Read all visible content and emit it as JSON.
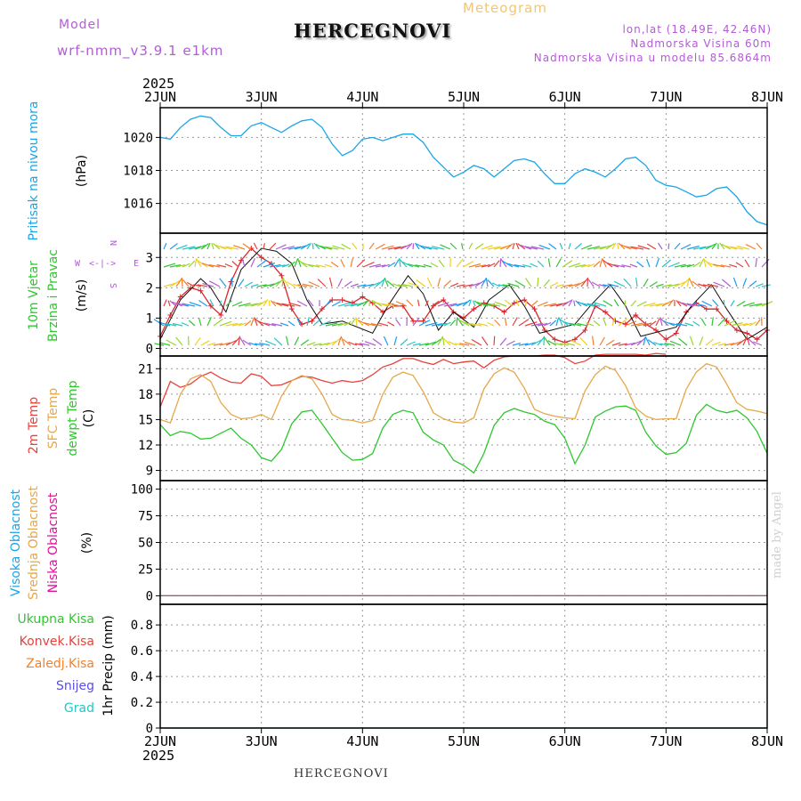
{
  "header": {
    "model_label": "Model",
    "model_name": "wrf-nmm_v3.9.1 e1km",
    "title": "HERCEGNOVI",
    "meteogram_label": "Meteogram",
    "lonlat": "lon,lat (18.49E, 42.46N)",
    "elevation": "Nadmorska Visina 60m",
    "model_elevation": "Nadmorska Visina u modelu 85.6864m"
  },
  "footer": {
    "station": "HERCEGNOVI",
    "credit": "made by Angel"
  },
  "colors": {
    "pressure": "#1aa5e8",
    "temp2m": "#e8413c",
    "sfc_temp": "#e5a84a",
    "dewpoint": "#2ec82e",
    "wind_label": "#2ec82e",
    "compass": "#b25cd6",
    "visoka": "#1aa5e8",
    "srednja": "#e5a84a",
    "niska": "#e0139a",
    "ukupna": "#2ec82e",
    "konvek": "#e8413c",
    "zaledj": "#f5802a",
    "snijeg": "#5b4ee8",
    "grad": "#22c7c7"
  },
  "time_axis": {
    "year": "2025",
    "ticks": [
      "2JUN",
      "3JUN",
      "4JUN",
      "5JUN",
      "6JUN",
      "7JUN",
      "8JUN"
    ]
  },
  "chart_data": [
    {
      "panel": "pressure",
      "type": "line",
      "ylabel_title": "Pritisak na nivou mora",
      "ylabel_unit": "(hPa)",
      "yticks": [
        "1016",
        "1018",
        "1020"
      ],
      "ylim": [
        1014.2,
        1021.8
      ],
      "grid": true,
      "series": [
        {
          "color": "#1aa5e8",
          "x": [
            0,
            0.1,
            0.2,
            0.3,
            0.4,
            0.5,
            0.6,
            0.7,
            0.8,
            0.9,
            1.0,
            1.1,
            1.2,
            1.3,
            1.4,
            1.5,
            1.6,
            1.7,
            1.8,
            1.9,
            2.0,
            2.1,
            2.2,
            2.3,
            2.4,
            2.5,
            2.6,
            2.7,
            2.8,
            2.9,
            3.0,
            3.1,
            3.2,
            3.3,
            3.4,
            3.5,
            3.6,
            3.7,
            3.8,
            3.9,
            4.0,
            4.1,
            4.2,
            4.3,
            4.4,
            4.5,
            4.6,
            4.7,
            4.8,
            4.9,
            5.0,
            5.1,
            5.2,
            5.3,
            5.4,
            5.5,
            5.6,
            5.7,
            5.8,
            5.9,
            6.0
          ],
          "y": [
            1020.0,
            1019.9,
            1020.6,
            1021.1,
            1021.3,
            1021.2,
            1020.6,
            1020.1,
            1020.1,
            1020.7,
            1020.9,
            1020.6,
            1020.3,
            1020.7,
            1021.0,
            1021.1,
            1020.6,
            1019.6,
            1018.9,
            1019.2,
            1019.9,
            1020.0,
            1019.8,
            1020.0,
            1020.2,
            1020.2,
            1019.7,
            1018.8,
            1018.2,
            1017.6,
            1017.9,
            1018.3,
            1018.1,
            1017.6,
            1018.1,
            1018.6,
            1018.7,
            1018.5,
            1017.8,
            1017.2,
            1017.2,
            1017.8,
            1018.1,
            1017.9,
            1017.6,
            1018.1,
            1018.7,
            1018.8,
            1018.3,
            1017.4,
            1017.1,
            1017.0,
            1016.7,
            1016.4,
            1016.5,
            1016.9,
            1017.0,
            1016.4,
            1015.5,
            1014.9,
            1014.7
          ]
        }
      ]
    },
    {
      "panel": "wind",
      "type": "line",
      "ylabel_title": "10m Vjetar",
      "ylabel_title2": "Brzina i Pravac",
      "ylabel_unit": "(m/s)",
      "compass": {
        "n": "N",
        "s": "S",
        "w": "W",
        "e": "E"
      },
      "yticks": [
        "0",
        "1",
        "2",
        "3"
      ],
      "ylim": [
        -0.25,
        3.8
      ],
      "grid": true,
      "series": [
        {
          "name": "speed",
          "color": "#d8262e",
          "x": [
            0,
            0.1,
            0.2,
            0.3,
            0.4,
            0.5,
            0.6,
            0.7,
            0.8,
            0.9,
            1.0,
            1.1,
            1.2,
            1.3,
            1.4,
            1.5,
            1.6,
            1.7,
            1.8,
            1.9,
            2.0,
            2.1,
            2.2,
            2.3,
            2.4,
            2.5,
            2.6,
            2.7,
            2.8,
            2.9,
            3.0,
            3.1,
            3.2,
            3.3,
            3.4,
            3.5,
            3.6,
            3.7,
            3.8,
            3.9,
            4.0,
            4.1,
            4.2,
            4.3,
            4.4,
            4.5,
            4.6,
            4.7,
            4.8,
            4.9,
            5.0,
            5.1,
            5.2,
            5.3,
            5.4,
            5.5,
            5.6,
            5.7,
            5.8,
            5.9,
            6.0
          ],
          "y": [
            0.4,
            1.1,
            1.7,
            2.0,
            1.9,
            1.4,
            1.1,
            2.2,
            2.9,
            3.3,
            3.0,
            2.8,
            2.4,
            1.3,
            0.8,
            0.9,
            1.3,
            1.6,
            1.6,
            1.5,
            1.7,
            1.5,
            1.2,
            1.4,
            1.4,
            0.9,
            0.9,
            1.4,
            1.6,
            1.2,
            1.0,
            1.3,
            1.5,
            1.4,
            1.2,
            1.5,
            1.6,
            1.3,
            0.6,
            0.3,
            0.2,
            0.3,
            0.6,
            1.4,
            1.2,
            0.9,
            0.8,
            1.1,
            0.8,
            0.6,
            0.3,
            0.5,
            1.2,
            1.5,
            1.3,
            1.3,
            0.9,
            0.6,
            0.5,
            0.3,
            0.6
          ]
        },
        {
          "name": "gust",
          "color": "#111111",
          "x": [
            0,
            0.2,
            0.4,
            0.5,
            0.65,
            0.8,
            1.0,
            1.15,
            1.3,
            1.45,
            1.6,
            1.8,
            2.1,
            2.25,
            2.45,
            2.6,
            2.75,
            2.9,
            3.1,
            3.25,
            3.45,
            3.6,
            3.75,
            4.1,
            4.25,
            4.45,
            4.6,
            4.75,
            5.1,
            5.25,
            5.45,
            5.6,
            5.8,
            6.0
          ],
          "y": [
            0.3,
            1.6,
            2.3,
            2.0,
            1.2,
            2.6,
            3.3,
            3.2,
            2.8,
            1.6,
            0.8,
            0.9,
            0.5,
            1.4,
            2.4,
            1.8,
            0.6,
            1.2,
            0.7,
            1.6,
            2.1,
            1.4,
            0.5,
            0.8,
            1.4,
            2.1,
            1.4,
            0.4,
            0.7,
            1.4,
            2.1,
            1.3,
            0.3,
            0.7
          ]
        }
      ]
    },
    {
      "panel": "temperature",
      "type": "line",
      "ylabel_title": "2m Temp",
      "ylabel_title2": "SFC Temp",
      "ylabel_title3": "dewpt Temp",
      "ylabel_unit": "(C)",
      "yticks": [
        "9",
        "12",
        "15",
        "18",
        "21"
      ],
      "ylim": [
        7.8,
        22.5
      ],
      "grid": true,
      "series": [
        {
          "name": "2m Temp",
          "color": "#e8413c",
          "x": [
            0,
            0.1,
            0.2,
            0.3,
            0.4,
            0.5,
            0.6,
            0.7,
            0.8,
            0.9,
            1.0,
            1.1,
            1.2,
            1.3,
            1.4,
            1.5,
            1.6,
            1.7,
            1.8,
            1.9,
            2.0,
            2.1,
            2.2,
            2.3,
            2.4,
            2.5,
            2.6,
            2.7,
            2.8,
            2.9,
            3.0,
            3.1,
            3.2,
            3.3,
            3.4,
            3.5,
            3.6,
            3.7,
            3.8,
            3.9,
            4.0,
            4.1,
            4.2,
            4.3,
            4.4,
            4.5,
            4.6,
            4.7,
            4.8,
            4.9,
            5.0
          ],
          "y": [
            16.5,
            19.5,
            18.8,
            19.2,
            20.1,
            20.6,
            19.9,
            19.4,
            19.3,
            20.4,
            20.1,
            19.0,
            19.1,
            19.6,
            20.1,
            20.0,
            19.6,
            19.3,
            19.6,
            19.4,
            19.6,
            20.3,
            21.2,
            21.6,
            22.2,
            22.2,
            21.8,
            21.5,
            22.1,
            21.6,
            21.8,
            21.9,
            21.1,
            22.0,
            22.4,
            22.5,
            22.5,
            22.5,
            22.6,
            22.6,
            22.3,
            21.6,
            21.9,
            22.6,
            22.7,
            22.7,
            22.7,
            22.7,
            22.6,
            22.8,
            22.7
          ]
        },
        {
          "name": "SFC Temp",
          "color": "#e5a84a",
          "x": [
            0,
            0.1,
            0.2,
            0.3,
            0.4,
            0.5,
            0.6,
            0.7,
            0.8,
            0.9,
            1.0,
            1.1,
            1.2,
            1.3,
            1.4,
            1.5,
            1.6,
            1.7,
            1.8,
            1.9,
            2.0,
            2.1,
            2.2,
            2.3,
            2.4,
            2.5,
            2.6,
            2.7,
            2.8,
            2.9,
            3.0,
            3.1,
            3.2,
            3.3,
            3.4,
            3.5,
            3.6,
            3.7,
            3.8,
            3.9,
            4.0,
            4.1,
            4.2,
            4.3,
            4.4,
            4.5,
            4.6,
            4.7,
            4.8,
            4.9,
            5.0,
            5.1,
            5.2,
            5.3,
            5.4,
            5.5,
            5.6,
            5.7,
            5.8,
            5.9,
            6.0
          ],
          "y": [
            15.0,
            14.6,
            18.0,
            19.8,
            20.3,
            19.5,
            17.0,
            15.6,
            15.1,
            15.2,
            15.6,
            15.0,
            17.8,
            19.6,
            20.2,
            19.8,
            18.0,
            15.6,
            15.0,
            14.9,
            14.6,
            14.9,
            18.0,
            20.0,
            20.6,
            20.2,
            18.3,
            15.8,
            15.1,
            14.7,
            14.6,
            15.2,
            18.6,
            20.4,
            21.1,
            20.6,
            18.7,
            16.2,
            15.7,
            15.4,
            15.2,
            15.1,
            18.4,
            20.3,
            21.3,
            20.8,
            19.0,
            16.4,
            15.4,
            15.0,
            15.1,
            15.1,
            18.6,
            20.6,
            21.6,
            21.2,
            19.2,
            17.0,
            16.2,
            16.0,
            15.7
          ]
        },
        {
          "name": "dewpt Temp",
          "color": "#2ec82e",
          "x": [
            0,
            0.1,
            0.2,
            0.3,
            0.4,
            0.5,
            0.6,
            0.7,
            0.8,
            0.9,
            1.0,
            1.1,
            1.2,
            1.3,
            1.4,
            1.5,
            1.6,
            1.7,
            1.8,
            1.9,
            2.0,
            2.1,
            2.2,
            2.3,
            2.4,
            2.5,
            2.6,
            2.7,
            2.8,
            2.9,
            3.0,
            3.1,
            3.2,
            3.3,
            3.4,
            3.5,
            3.6,
            3.7,
            3.8,
            3.9,
            4.0,
            4.1,
            4.2,
            4.3,
            4.4,
            4.5,
            4.6,
            4.7,
            4.8,
            4.9,
            5.0,
            5.1,
            5.2,
            5.3,
            5.4,
            5.5,
            5.6,
            5.7,
            5.8,
            5.9,
            6.0
          ],
          "y": [
            14.4,
            13.1,
            13.6,
            13.4,
            12.7,
            12.8,
            13.4,
            14.0,
            12.8,
            12.0,
            10.5,
            10.1,
            11.5,
            14.5,
            15.9,
            16.1,
            14.5,
            12.8,
            11.1,
            10.2,
            10.3,
            11.0,
            14.0,
            15.6,
            16.1,
            15.8,
            13.5,
            12.6,
            12.0,
            10.2,
            9.6,
            8.7,
            11.0,
            14.3,
            15.8,
            16.3,
            15.9,
            15.6,
            14.8,
            14.4,
            12.8,
            9.8,
            12.0,
            15.3,
            16.0,
            16.5,
            16.6,
            16.1,
            13.5,
            11.9,
            10.9,
            11.1,
            12.2,
            15.5,
            16.8,
            16.1,
            15.8,
            16.1,
            15.2,
            13.6,
            11.0
          ]
        }
      ]
    },
    {
      "panel": "clouds",
      "type": "line",
      "ylabel_title": "Visoka Oblacnost",
      "ylabel_title2": "Srednja Oblacnost",
      "ylabel_title3": "Niska Oblacnost",
      "ylabel_unit": "(%)",
      "yticks": [
        "0",
        "25",
        "50",
        "75",
        "100"
      ],
      "ylim": [
        -8,
        108
      ],
      "grid": true,
      "series": [
        {
          "name": "Visoka Oblacnost",
          "color": "#1aa5e8",
          "x": [
            0,
            6
          ],
          "y": [
            0,
            0
          ]
        },
        {
          "name": "Niska Oblacnost",
          "color": "#e8413c",
          "x": [
            0,
            6
          ],
          "y": [
            0,
            0
          ]
        }
      ]
    },
    {
      "panel": "precip",
      "type": "line",
      "ylabel_unit": "1hr Precip (mm)",
      "legend": [
        "Ukupna Kisa",
        "Konvek.Kisa",
        "Zaledj.Kisa",
        "Snijeg",
        "Grad"
      ],
      "yticks": [
        "0",
        "0.2",
        "0.4",
        "0.6",
        "0.8"
      ],
      "ylim": [
        0,
        0.96
      ],
      "grid": true,
      "series": [
        {
          "name": "Ukupna Kisa",
          "color": "#2ec82e",
          "x": [
            0,
            6
          ],
          "y": [
            0,
            0
          ]
        }
      ]
    }
  ]
}
